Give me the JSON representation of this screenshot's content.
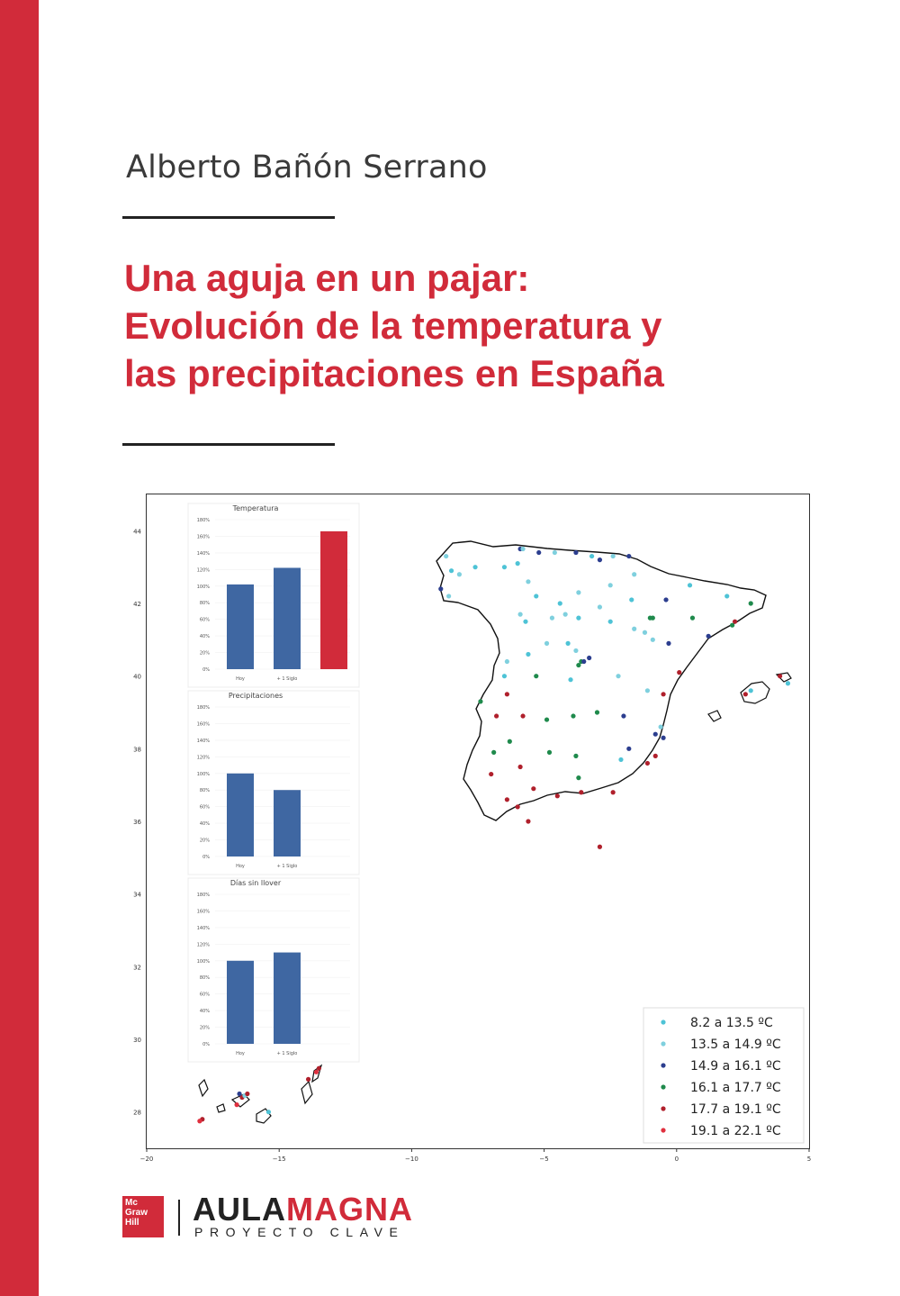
{
  "author": "Alberto Bañón Serrano",
  "title_lines": [
    "Una aguja en un pajar:",
    "Evolución de la temperatura y",
    "las precipitaciones en España"
  ],
  "colors": {
    "brand_red": "#d12b3a",
    "bar_blue": "#3f67a2"
  },
  "chart_data": [
    {
      "type": "bar",
      "title": "Temperatura",
      "categories": [
        "Hoy",
        "+ 1 Siglo"
      ],
      "values": [
        102,
        122
      ],
      "extra_bar_value": 166,
      "ylim": [
        0,
        180
      ],
      "yticks": [
        "0%",
        "20%",
        "40%",
        "60%",
        "80%",
        "100%",
        "120%",
        "140%",
        "160%",
        "180%"
      ]
    },
    {
      "type": "bar",
      "title": "Precipitaciones",
      "categories": [
        "Hoy",
        "+ 1 Siglo"
      ],
      "values": [
        100,
        80
      ],
      "ylim": [
        0,
        180
      ],
      "yticks": [
        "0%",
        "20%",
        "40%",
        "60%",
        "80%",
        "100%",
        "120%",
        "140%",
        "160%",
        "180%"
      ]
    },
    {
      "type": "bar",
      "title": "Días sin llover",
      "categories": [
        "Hoy",
        "+ 1 Siglo"
      ],
      "values": [
        100,
        110
      ],
      "ylim": [
        0,
        180
      ],
      "yticks": [
        "0%",
        "20%",
        "40%",
        "60%",
        "80%",
        "100%",
        "120%",
        "140%",
        "160%",
        "180%"
      ]
    },
    {
      "type": "scatter",
      "xlim": [
        -20,
        5
      ],
      "ylim": [
        27,
        45
      ],
      "xticks": [
        -20,
        -15,
        -10,
        -5,
        0,
        5
      ],
      "yticks": [
        28,
        30,
        32,
        34,
        36,
        38,
        40,
        42,
        44
      ],
      "legend_position": "lower-right",
      "series": [
        {
          "name": "8.2 a 13.5 ºC",
          "color": "#4ec3d6"
        },
        {
          "name": "13.5 a 14.9 ºC",
          "color": "#7fd0de"
        },
        {
          "name": "14.9 a 16.1 ºC",
          "color": "#2c3e8f"
        },
        {
          "name": "16.1 a 17.7 ºC",
          "color": "#1f8a4c"
        },
        {
          "name": "17.7 a 19.1 ºC",
          "color": "#b0202c"
        },
        {
          "name": "19.1 a 22.1 ºC",
          "color": "#e0303f"
        }
      ],
      "points": [
        [
          -8.7,
          43.3,
          1
        ],
        [
          -8.5,
          42.9,
          0
        ],
        [
          -8.9,
          42.4,
          2
        ],
        [
          -8.6,
          42.2,
          1
        ],
        [
          -8.2,
          42.8,
          1
        ],
        [
          -7.6,
          43.0,
          0
        ],
        [
          -6.5,
          43.0,
          0
        ],
        [
          -5.9,
          43.5,
          2
        ],
        [
          -5.8,
          43.5,
          1
        ],
        [
          -5.2,
          43.4,
          2
        ],
        [
          -4.6,
          43.4,
          1
        ],
        [
          -3.8,
          43.4,
          2
        ],
        [
          -3.2,
          43.3,
          0
        ],
        [
          -2.9,
          43.2,
          2
        ],
        [
          -2.4,
          43.3,
          1
        ],
        [
          -1.8,
          43.3,
          2
        ],
        [
          -6.0,
          43.1,
          0
        ],
        [
          -5.6,
          42.6,
          1
        ],
        [
          -5.3,
          42.2,
          0
        ],
        [
          -4.4,
          42.0,
          0
        ],
        [
          -3.7,
          42.3,
          1
        ],
        [
          -2.9,
          41.9,
          1
        ],
        [
          -2.5,
          42.5,
          1
        ],
        [
          -1.6,
          42.8,
          1
        ],
        [
          -1.7,
          42.1,
          0
        ],
        [
          -0.4,
          42.1,
          2
        ],
        [
          0.5,
          42.5,
          0
        ],
        [
          1.9,
          42.2,
          0
        ],
        [
          2.8,
          42.0,
          3
        ],
        [
          2.2,
          41.5,
          4
        ],
        [
          2.1,
          41.4,
          3
        ],
        [
          1.2,
          41.1,
          2
        ],
        [
          0.6,
          41.6,
          3
        ],
        [
          -0.9,
          41.6,
          3
        ],
        [
          -1.0,
          41.6,
          3
        ],
        [
          -5.9,
          41.7,
          1
        ],
        [
          -5.7,
          41.5,
          0
        ],
        [
          -4.7,
          41.6,
          1
        ],
        [
          -4.2,
          41.7,
          1
        ],
        [
          -3.7,
          41.6,
          0
        ],
        [
          -2.5,
          41.5,
          0
        ],
        [
          -1.6,
          41.3,
          1
        ],
        [
          -1.2,
          41.2,
          1
        ],
        [
          -0.9,
          41.0,
          1
        ],
        [
          -0.3,
          40.9,
          2
        ],
        [
          -4.1,
          40.9,
          0
        ],
        [
          -3.8,
          40.7,
          1
        ],
        [
          -3.6,
          40.4,
          3
        ],
        [
          -3.7,
          40.3,
          3
        ],
        [
          -3.5,
          40.4,
          2
        ],
        [
          -3.3,
          40.5,
          2
        ],
        [
          -4.9,
          40.9,
          1
        ],
        [
          -5.6,
          40.6,
          0
        ],
        [
          -6.4,
          40.4,
          1
        ],
        [
          -6.5,
          40.0,
          0
        ],
        [
          -5.3,
          40.0,
          3
        ],
        [
          -4.0,
          39.9,
          0
        ],
        [
          -2.2,
          40.0,
          1
        ],
        [
          -0.5,
          39.5,
          4
        ],
        [
          0.1,
          40.1,
          4
        ],
        [
          -1.1,
          39.6,
          1
        ],
        [
          -7.4,
          39.3,
          3
        ],
        [
          -6.4,
          39.5,
          4
        ],
        [
          -6.8,
          38.9,
          4
        ],
        [
          -5.8,
          38.9,
          4
        ],
        [
          -4.9,
          38.8,
          3
        ],
        [
          -3.9,
          38.9,
          3
        ],
        [
          -3.0,
          39.0,
          3
        ],
        [
          -2.0,
          38.9,
          2
        ],
        [
          -1.8,
          38.0,
          2
        ],
        [
          -0.8,
          38.4,
          2
        ],
        [
          -0.5,
          38.3,
          2
        ],
        [
          -0.6,
          38.6,
          1
        ],
        [
          -6.3,
          38.2,
          3
        ],
        [
          -6.9,
          37.9,
          3
        ],
        [
          -5.9,
          37.5,
          4
        ],
        [
          -4.8,
          37.9,
          3
        ],
        [
          -3.8,
          37.8,
          3
        ],
        [
          -2.1,
          37.7,
          0
        ],
        [
          -1.1,
          37.6,
          4
        ],
        [
          -0.8,
          37.8,
          4
        ],
        [
          -5.4,
          36.9,
          4
        ],
        [
          -6.4,
          36.6,
          4
        ],
        [
          -6.0,
          36.4,
          4
        ],
        [
          -5.6,
          36.0,
          4
        ],
        [
          -4.5,
          36.7,
          4
        ],
        [
          -3.6,
          36.8,
          4
        ],
        [
          -2.4,
          36.8,
          4
        ],
        [
          -7.0,
          37.3,
          4
        ],
        [
          -3.7,
          37.2,
          3
        ],
        [
          -2.9,
          35.3,
          4
        ],
        [
          2.6,
          39.5,
          4
        ],
        [
          2.8,
          39.6,
          0
        ],
        [
          3.9,
          40.0,
          4
        ],
        [
          4.2,
          39.8,
          0
        ],
        [
          -17.9,
          27.8,
          4
        ],
        [
          -18.0,
          27.75,
          5
        ],
        [
          -16.6,
          28.2,
          5
        ],
        [
          -16.4,
          28.4,
          4
        ],
        [
          -16.3,
          28.45,
          1
        ],
        [
          -16.5,
          28.5,
          2
        ],
        [
          -16.2,
          28.5,
          4
        ],
        [
          -15.4,
          28.0,
          0
        ],
        [
          -13.9,
          28.9,
          4
        ],
        [
          -13.6,
          29.1,
          5
        ],
        [
          -13.5,
          29.2,
          4
        ]
      ]
    }
  ],
  "publisher": {
    "logo_lines": [
      "Mc",
      "Graw",
      "Hill"
    ],
    "series_part1": "AULA",
    "series_part2": "MAGNA",
    "subtitle": "PROYECTO CLAVE"
  }
}
